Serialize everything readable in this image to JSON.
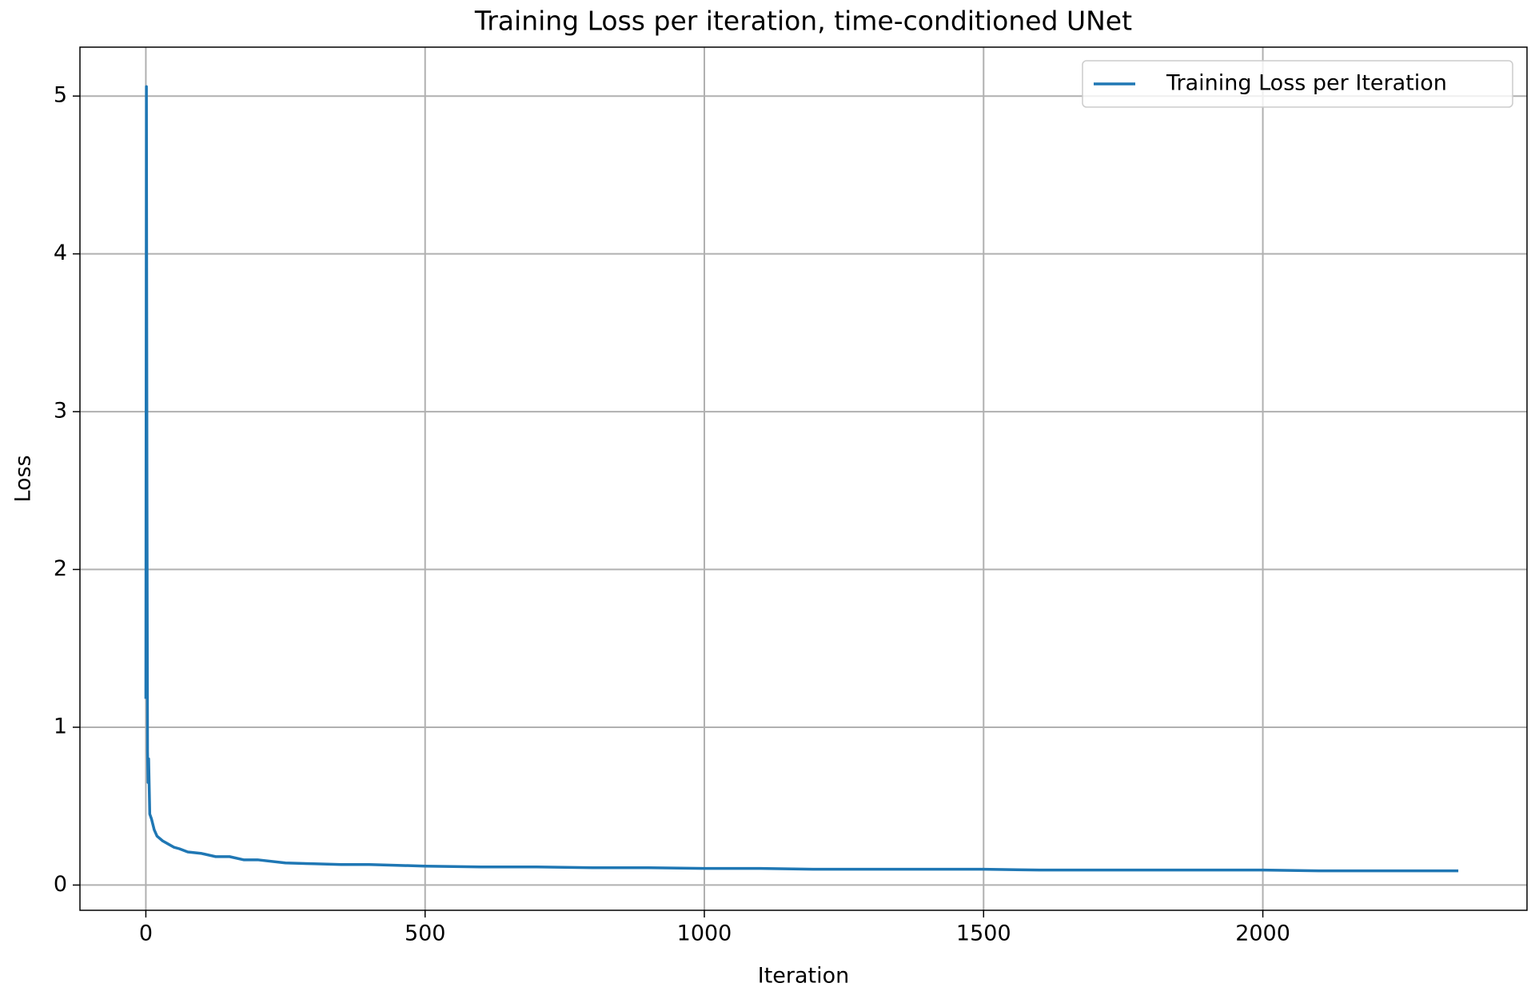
{
  "chart_data": {
    "type": "line",
    "title": "Training Loss per iteration, time-conditioned UNet",
    "x_label": "Iteration",
    "y_label": "Loss",
    "x": [
      0,
      1,
      2,
      3,
      4,
      5,
      7,
      10,
      15,
      20,
      30,
      40,
      50,
      60,
      75,
      100,
      125,
      150,
      175,
      200,
      250,
      300,
      350,
      400,
      450,
      500,
      600,
      700,
      800,
      900,
      1000,
      1100,
      1200,
      1300,
      1400,
      1500,
      1600,
      1700,
      1800,
      1900,
      2000,
      2100,
      2200,
      2300,
      2350
    ],
    "series": [
      {
        "name": "Training Loss per Iteration",
        "color": "#1f77b4",
        "values": [
          1.18,
          5.06,
          2.5,
          0.85,
          0.65,
          0.8,
          0.45,
          0.42,
          0.35,
          0.31,
          0.28,
          0.26,
          0.24,
          0.23,
          0.21,
          0.2,
          0.18,
          0.18,
          0.16,
          0.16,
          0.14,
          0.135,
          0.13,
          0.13,
          0.125,
          0.12,
          0.115,
          0.115,
          0.11,
          0.11,
          0.105,
          0.105,
          0.1,
          0.1,
          0.1,
          0.1,
          0.095,
          0.095,
          0.095,
          0.095,
          0.095,
          0.09,
          0.09,
          0.09,
          0.09
        ]
      }
    ],
    "xlim": [
      -118,
      2473
    ],
    "ylim": [
      -0.16,
      5.31
    ],
    "xticks": [
      0,
      500,
      1000,
      1500,
      2000
    ],
    "yticks": [
      0,
      1,
      2,
      3,
      4,
      5
    ],
    "grid": true,
    "legend": "upper right"
  }
}
